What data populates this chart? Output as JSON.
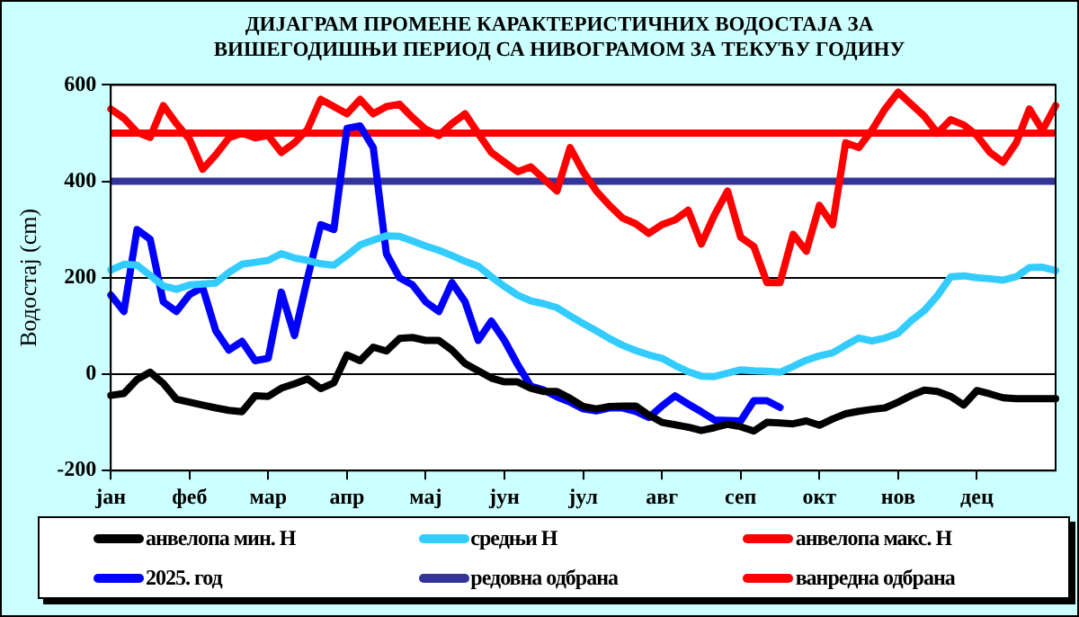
{
  "chart_data": {
    "type": "line",
    "title": "ДИЈАГРАМ ПРОМЕНЕ КАРАКТЕРИСТИЧНИХ ВОДОСТАЈА ЗА ВИШЕГОДИШЊИ ПЕРИОД СА НИВОГРАМОМ ЗА ТЕКУЋУ ГОДИНУ",
    "ylabel": "Водостај (cm)",
    "categories": [
      "јан",
      null,
      null,
      null,
      null,
      null,
      "феб",
      null,
      null,
      null,
      null,
      null,
      "мар",
      null,
      null,
      null,
      null,
      null,
      "апр",
      null,
      null,
      null,
      null,
      null,
      "мај",
      null,
      null,
      null,
      null,
      null,
      "јун",
      null,
      null,
      null,
      null,
      null,
      "јул",
      null,
      null,
      null,
      null,
      null,
      "авг",
      null,
      null,
      null,
      null,
      null,
      "сеп",
      null,
      null,
      null,
      null,
      null,
      "окт",
      null,
      null,
      null,
      null,
      null,
      "нов",
      null,
      null,
      null,
      null,
      null,
      "дец",
      null,
      null,
      null,
      null,
      null,
      null
    ],
    "ylim": [
      -200,
      600
    ],
    "yticks": [
      -200,
      0,
      200,
      400,
      600
    ],
    "grid": "y",
    "legend": "bottom",
    "marker": "none",
    "line_style": "solid",
    "series": [
      {
        "name": "анвелопа мин. Н",
        "color": "#000000",
        "values": [
          -44,
          -40,
          -11,
          4,
          -19,
          -52,
          -58,
          -64,
          -70,
          -75,
          -78,
          -45,
          -46,
          -29,
          -20,
          -10,
          -30,
          -18,
          40,
          28,
          56,
          48,
          74,
          76,
          70,
          70,
          50,
          22,
          7,
          -8,
          -16,
          -16,
          -29,
          -36,
          -36,
          -50,
          -67,
          -72,
          -67,
          -66,
          -66,
          -85,
          -100,
          -105,
          -110,
          -117,
          -111,
          -104,
          -109,
          -118,
          -100,
          -101,
          -103,
          -97,
          -106,
          -93,
          -82,
          -77,
          -73,
          -70,
          -58,
          -44,
          -33,
          -36,
          -46,
          -64,
          -34,
          -41,
          -49,
          -51,
          -51,
          -51,
          -51
        ]
      },
      {
        "name": "средњи Н",
        "color": "#33ccff",
        "values": [
          216,
          228,
          226,
          205,
          183,
          176,
          185,
          187,
          189,
          211,
          228,
          232,
          236,
          250,
          241,
          236,
          229,
          226,
          246,
          268,
          278,
          287,
          286,
          276,
          266,
          257,
          246,
          234,
          224,
          202,
          182,
          164,
          152,
          146,
          138,
          121,
          105,
          90,
          74,
          60,
          49,
          40,
          33,
          18,
          5,
          -4,
          -5,
          2,
          9,
          7,
          6,
          4,
          16,
          29,
          38,
          44,
          60,
          75,
          69,
          75,
          85,
          111,
          132,
          163,
          202,
          204,
          200,
          198,
          195,
          202,
          221,
          222,
          215
        ]
      },
      {
        "name": "анвелопа макс. Н",
        "color": "#ff0000",
        "values": [
          550,
          531,
          502,
          491,
          557,
          520,
          487,
          425,
          455,
          490,
          500,
          490,
          495,
          460,
          480,
          508,
          570,
          555,
          540,
          570,
          540,
          555,
          560,
          532,
          508,
          495,
          520,
          540,
          499,
          460,
          440,
          420,
          430,
          405,
          380,
          470,
          420,
          380,
          350,
          324,
          312,
          292,
          310,
          320,
          340,
          270,
          330,
          380,
          284,
          265,
          190,
          190,
          290,
          255,
          350,
          310,
          480,
          470,
          506,
          550,
          585,
          560,
          535,
          500,
          528,
          517,
          495,
          460,
          440,
          480,
          550,
          506,
          557
        ]
      },
      {
        "name": "2025. год",
        "color": "#0000ff",
        "values": [
          164,
          130,
          300,
          280,
          150,
          130,
          165,
          180,
          90,
          50,
          68,
          28,
          33,
          170,
          80,
          200,
          310,
          300,
          510,
          515,
          470,
          250,
          200,
          185,
          150,
          130,
          190,
          150,
          70,
          110,
          70,
          20,
          -25,
          -33,
          -47,
          -58,
          -72,
          -76,
          -70,
          -70,
          -77,
          -90,
          -66,
          -45,
          -62,
          -78,
          -95,
          -96,
          -97,
          -55,
          -55,
          -69,
          null,
          null,
          null,
          null,
          null,
          null,
          null,
          null,
          null,
          null,
          null,
          null,
          null,
          null,
          null,
          null,
          null,
          null,
          null,
          null,
          null
        ]
      }
    ],
    "ref_lines": [
      {
        "axis": "y",
        "value": 400,
        "label": "редовна одбрана",
        "color": "#333399"
      },
      {
        "axis": "y",
        "value": 500,
        "label": "ванредна одбрана",
        "color": "#ff0000"
      }
    ]
  }
}
